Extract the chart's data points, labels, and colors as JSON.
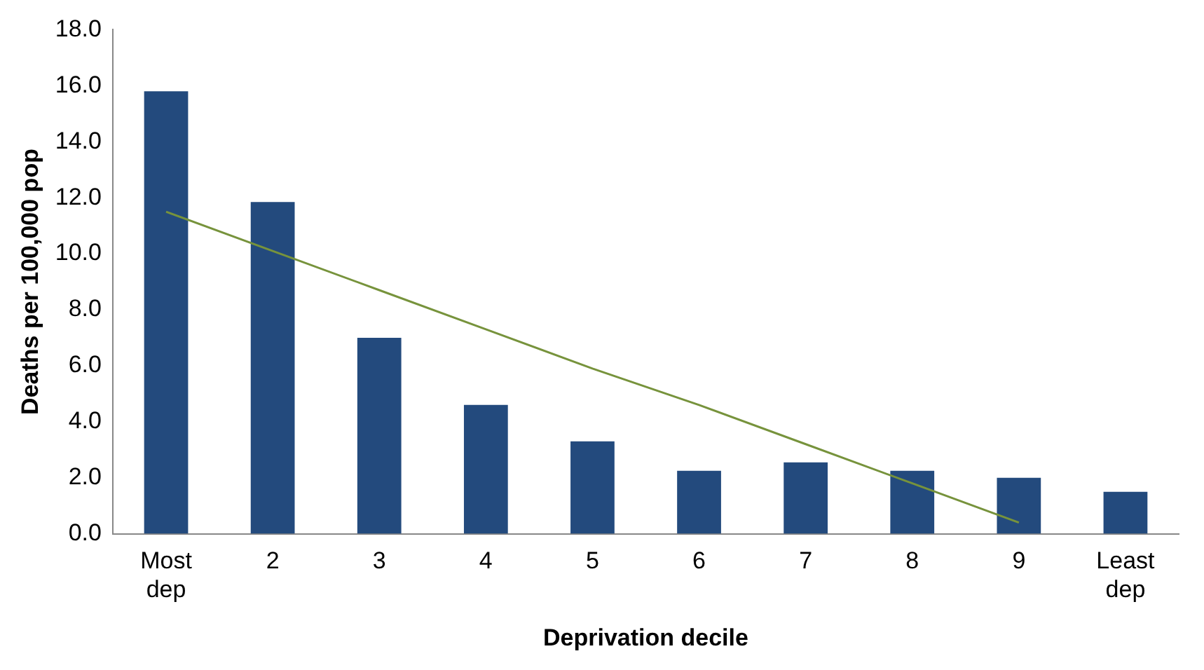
{
  "chart_data": {
    "type": "bar",
    "xlabel": "Deprivation decile",
    "ylabel": "Deaths per 100,000 pop",
    "categories": [
      "Most dep",
      "2",
      "3",
      "4",
      "5",
      "6",
      "7",
      "8",
      "9",
      "Least dep"
    ],
    "series": [
      {
        "color": "#234a7d",
        "values": [
          15.8,
          11.85,
          7.0,
          4.6,
          3.3,
          2.25,
          2.55,
          2.25,
          2.0,
          1.5
        ]
      },
      {
        "type": "line",
        "color": "#77933c",
        "values": [
          11.5,
          10.1,
          8.7,
          7.3,
          5.9,
          4.6,
          3.2,
          1.8,
          0.4,
          null
        ]
      }
    ],
    "ylim": [
      0,
      18
    ],
    "yticks": [
      {
        "value": 0,
        "label": "0.0"
      },
      {
        "value": 2,
        "label": "2.0"
      },
      {
        "value": 4,
        "label": "4.0"
      },
      {
        "value": 6,
        "label": "6.0"
      },
      {
        "value": 8,
        "label": "8.0"
      },
      {
        "value": 10,
        "label": "10.0"
      },
      {
        "value": 12,
        "label": "12.0"
      },
      {
        "value": 14,
        "label": "14.0"
      },
      {
        "value": 16,
        "label": "16.0"
      },
      {
        "value": 18,
        "label": "18.0"
      }
    ],
    "grid": false,
    "legend": false,
    "marker": "none"
  }
}
